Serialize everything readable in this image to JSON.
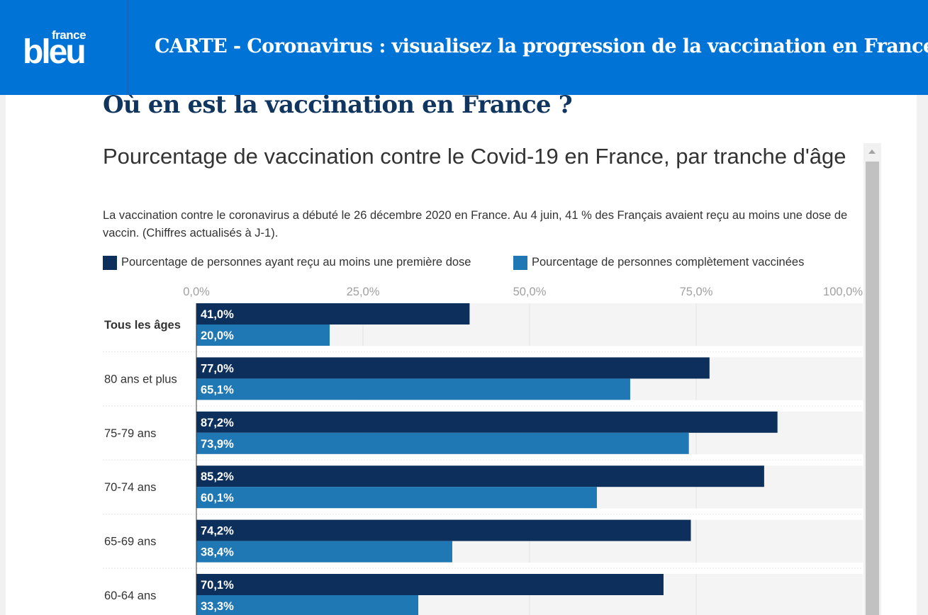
{
  "header": {
    "logo_top": "france",
    "logo_bottom": "bleu",
    "title": "CARTE - Coronavirus : visualisez la progression de la vaccination en France"
  },
  "section_title": "Où en est la vaccination en France ?",
  "chart_title": "Pourcentage de vaccination contre le Covid-19 en France, par tranche d'âge",
  "chart_description": "La vaccination contre le coronavirus a débuté le 26 décembre 2020 en France. Au 4 juin, 41 % des Français avaient reçu au moins une dose de vaccin. (Chiffres actualisés à J-1).",
  "legend": [
    {
      "label": "Pourcentage de personnes ayant reçu au moins une première dose",
      "color": "#0c2f5c"
    },
    {
      "label": "Pourcentage de personnes complètement vaccinées",
      "color": "#1f77b4"
    }
  ],
  "colors": {
    "header_bg": "#0073d7",
    "title_navy": "#10355f",
    "first_dose": "#0c2f5c",
    "fully_vaccinated": "#1f77b4",
    "plot_bg": "#f4f4f4"
  },
  "chart_data": {
    "type": "bar",
    "orientation": "horizontal",
    "title": "Pourcentage de vaccination contre le Covid-19 en France, par tranche d'âge",
    "x_ticks": [
      "0,0%",
      "25,0%",
      "50,0%",
      "75,0%",
      "100,0%"
    ],
    "xlim": [
      0,
      100
    ],
    "categories": [
      "Tous les âges",
      "80 ans et plus",
      "75-79 ans",
      "70-74 ans",
      "65-69 ans",
      "60-64 ans"
    ],
    "series": [
      {
        "name": "Pourcentage de personnes ayant reçu au moins une première dose",
        "values": [
          41.0,
          77.0,
          87.2,
          85.2,
          74.2,
          70.1
        ],
        "labels": [
          "41,0%",
          "77,0%",
          "87,2%",
          "85,2%",
          "74,2%",
          "70,1%"
        ]
      },
      {
        "name": "Pourcentage de personnes complètement vaccinées",
        "values": [
          20.0,
          65.1,
          73.9,
          60.1,
          38.4,
          33.3
        ],
        "labels": [
          "20,0%",
          "65,1%",
          "73,9%",
          "60,1%",
          "38,4%",
          "33,3%"
        ]
      }
    ],
    "legend_position": "top",
    "grid": true
  }
}
